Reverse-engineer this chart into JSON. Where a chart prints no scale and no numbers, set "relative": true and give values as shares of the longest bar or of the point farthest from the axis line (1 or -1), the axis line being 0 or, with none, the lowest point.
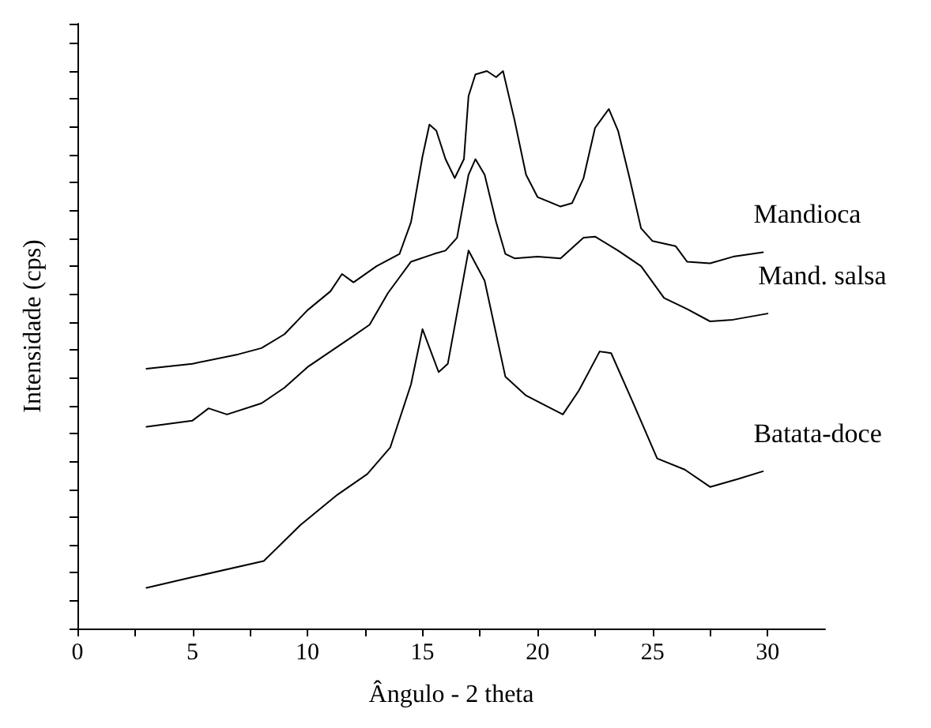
{
  "chart_data": {
    "type": "line",
    "xlabel": "Ângulo - 2 theta",
    "ylabel": "Intensidade (cps)",
    "relative": true,
    "tick_labels": "x",
    "grid": false,
    "legend": false,
    "marker": "none",
    "line_style": "solid",
    "xlim": [
      0,
      32.5
    ],
    "xticks": [
      0,
      {
        "value": 2.5,
        "label": null
      },
      5,
      {
        "value": 7.5,
        "label": null
      },
      10,
      {
        "value": 12.5,
        "label": null
      },
      15,
      {
        "value": 17.5,
        "label": null
      },
      20,
      {
        "value": 22.5,
        "label": null
      },
      25,
      {
        "value": 27.5,
        "label": null
      },
      30
    ],
    "series": [
      {
        "name": "Mandioca",
        "color": "#000000",
        "x": [
          3,
          5,
          7,
          8,
          9,
          10,
          11,
          11.5,
          12,
          13,
          14,
          14.5,
          15,
          15.3,
          15.6,
          16,
          16.4,
          16.8,
          17,
          17.3,
          17.8,
          18.2,
          18.5,
          19,
          19.5,
          20,
          21,
          21.5,
          22,
          22.5,
          23.1,
          23.5,
          24,
          24.5,
          25,
          26,
          26.5,
          27.5,
          28.5,
          29.8
        ],
        "values": [
          0.466,
          0.475,
          0.492,
          0.503,
          0.528,
          0.571,
          0.605,
          0.636,
          0.621,
          0.65,
          0.672,
          0.729,
          0.847,
          0.904,
          0.893,
          0.842,
          0.808,
          0.842,
          0.955,
          0.994,
          1,
          0.989,
          1,
          0.912,
          0.814,
          0.774,
          0.757,
          0.763,
          0.808,
          0.898,
          0.932,
          0.893,
          0.808,
          0.718,
          0.695,
          0.686,
          0.658,
          0.655,
          0.667,
          0.675
        ]
      },
      {
        "name": "Mand. salsa",
        "color": "#000000",
        "x": [
          3,
          5,
          5.7,
          6.5,
          8,
          9,
          10,
          11,
          12,
          12.7,
          13.5,
          14.5,
          15.5,
          16,
          16.5,
          17,
          17.3,
          17.7,
          18.2,
          18.6,
          19,
          20,
          21,
          22,
          22.5,
          23.5,
          24.5,
          25.5,
          26.5,
          27.5,
          28.5,
          30
        ],
        "values": [
          0.362,
          0.373,
          0.395,
          0.384,
          0.404,
          0.432,
          0.469,
          0.497,
          0.525,
          0.545,
          0.602,
          0.658,
          0.672,
          0.678,
          0.701,
          0.814,
          0.842,
          0.814,
          0.729,
          0.672,
          0.664,
          0.667,
          0.664,
          0.701,
          0.703,
          0.678,
          0.65,
          0.593,
          0.573,
          0.551,
          0.554,
          0.565
        ]
      },
      {
        "name": "Batata-doce",
        "color": "#000000",
        "x": [
          3,
          5.1,
          8.1,
          9.7,
          11.3,
          12.6,
          13.6,
          14.5,
          15,
          15.7,
          16.1,
          17,
          17.7,
          18.6,
          19.5,
          21.1,
          21.8,
          22.7,
          23.2,
          24.1,
          25.2,
          26.4,
          27.5,
          28.7,
          29.8
        ],
        "values": [
          0.073,
          0.093,
          0.121,
          0.186,
          0.24,
          0.277,
          0.325,
          0.438,
          0.537,
          0.46,
          0.475,
          0.678,
          0.624,
          0.452,
          0.418,
          0.384,
          0.427,
          0.497,
          0.494,
          0.41,
          0.305,
          0.285,
          0.254,
          0.268,
          0.282
        ]
      }
    ]
  }
}
